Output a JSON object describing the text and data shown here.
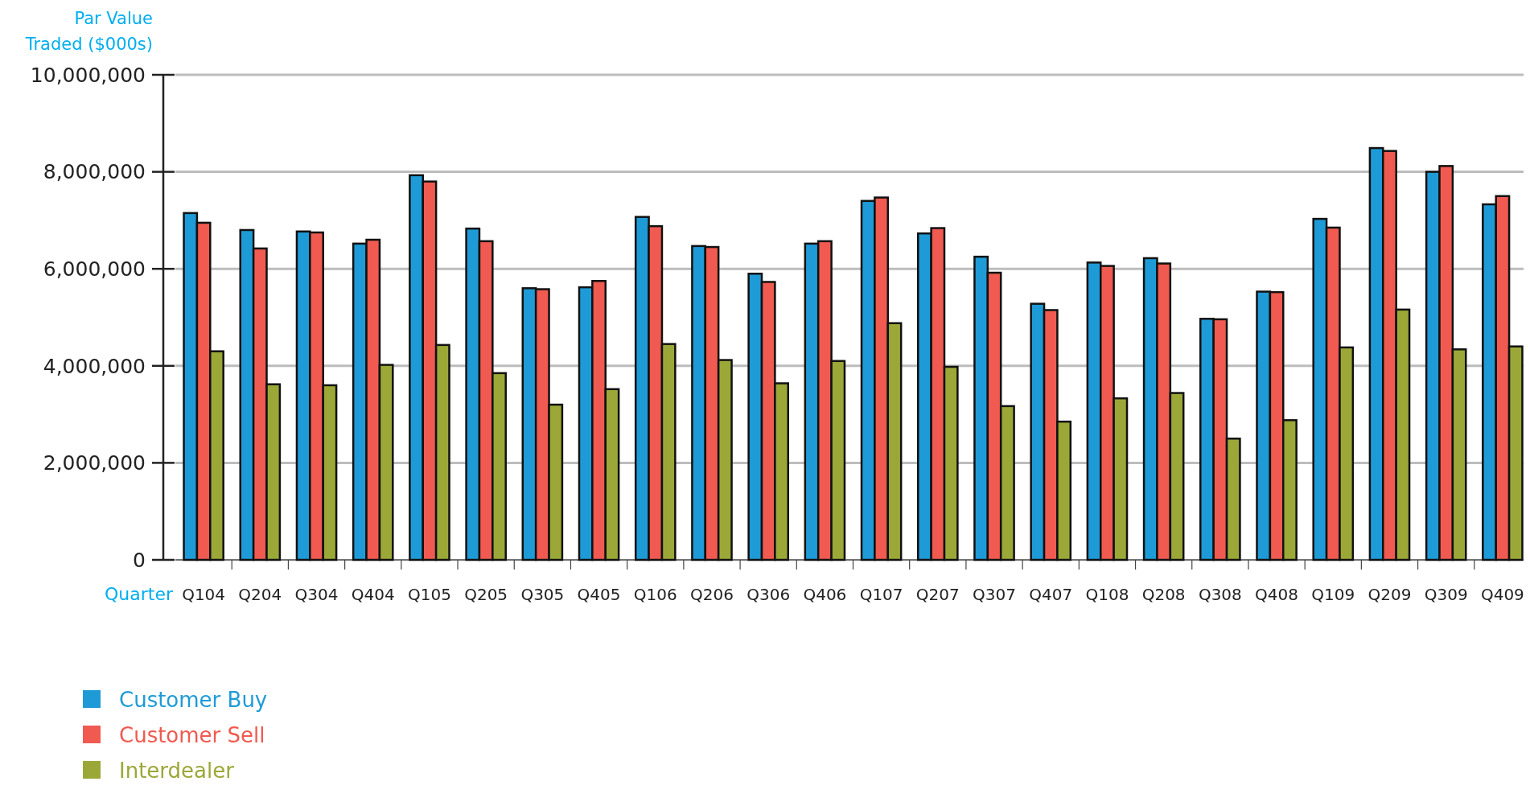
{
  "chart_data": {
    "type": "bar",
    "ylabel": "Par Value\nTraded ($000s)",
    "xlabel": "Quarter",
    "categories": [
      "Q104",
      "Q204",
      "Q304",
      "Q404",
      "Q105",
      "Q205",
      "Q305",
      "Q405",
      "Q106",
      "Q206",
      "Q306",
      "Q406",
      "Q107",
      "Q207",
      "Q307",
      "Q407",
      "Q108",
      "Q208",
      "Q308",
      "Q408",
      "Q109",
      "Q209",
      "Q309",
      "Q409"
    ],
    "series": [
      {
        "name": "Customer Buy",
        "color": "#1e9bd7",
        "values": [
          7150000,
          6800000,
          6770000,
          6520000,
          7930000,
          6830000,
          5600000,
          5620000,
          7070000,
          6470000,
          5900000,
          6520000,
          7400000,
          6730000,
          6250000,
          5280000,
          6130000,
          6220000,
          4970000,
          5530000,
          7030000,
          8490000,
          8000000,
          7330000
        ]
      },
      {
        "name": "Customer Sell",
        "color": "#f05a50",
        "values": [
          6950000,
          6420000,
          6750000,
          6600000,
          7800000,
          6570000,
          5580000,
          5750000,
          6880000,
          6450000,
          5730000,
          6570000,
          7470000,
          6840000,
          5920000,
          5150000,
          6060000,
          6110000,
          4960000,
          5520000,
          6850000,
          8430000,
          8120000,
          7500000
        ]
      },
      {
        "name": "Interdealer",
        "color": "#9ba837",
        "values": [
          4300000,
          3620000,
          3600000,
          4020000,
          4430000,
          3850000,
          3200000,
          3520000,
          4450000,
          4120000,
          3640000,
          4100000,
          4880000,
          3980000,
          3170000,
          2850000,
          3330000,
          3440000,
          2500000,
          2880000,
          4380000,
          5160000,
          4340000,
          4400000
        ]
      }
    ],
    "ylim": [
      0,
      10000000
    ],
    "yticks": [
      {
        "value": 0,
        "label": "0"
      },
      {
        "value": 2000000,
        "label": "2,000,000"
      },
      {
        "value": 4000000,
        "label": "4,000,000"
      },
      {
        "value": 6000000,
        "label": "6,000,000"
      },
      {
        "value": 8000000,
        "label": "8,000,000"
      },
      {
        "value": 10000000,
        "label": "10,000,000"
      }
    ],
    "grid": "y",
    "legend": "bottom left"
  }
}
